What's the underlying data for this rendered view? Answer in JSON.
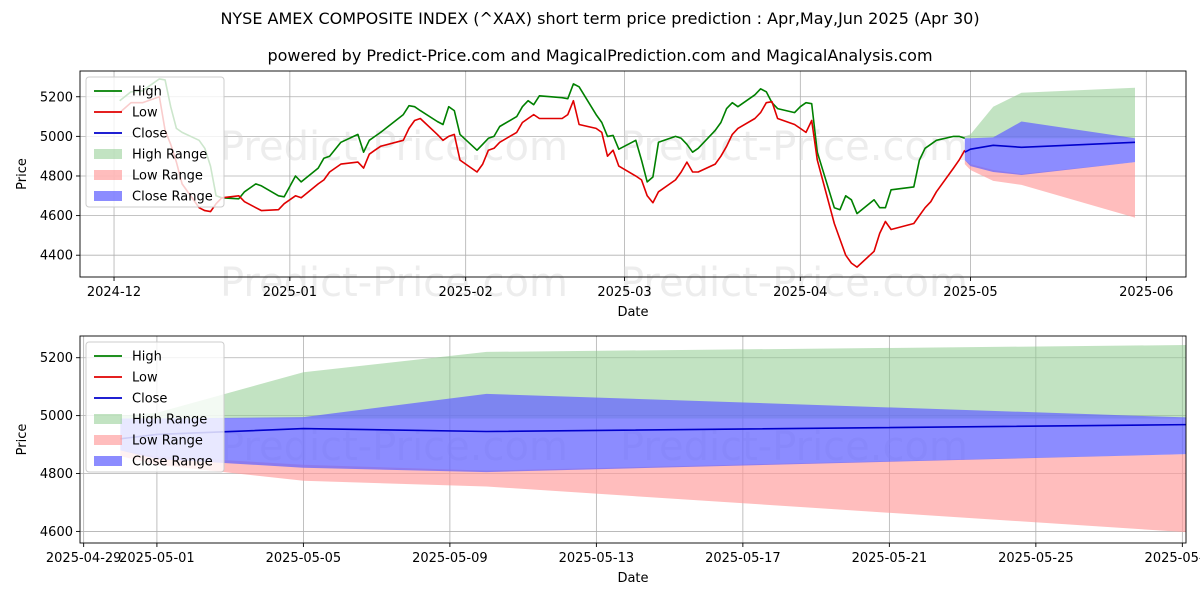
{
  "title": "NYSE AMEX COMPOSITE INDEX (^XAX) short term price prediction : Apr,May,Jun 2025 (Apr 30)",
  "subtitle": "powered by Predict-Price.com and MagicalPrediction.com and MagicalAnalysis.com",
  "watermarks": [
    "Predict-Price.com",
    "Predict-Price.com",
    "Predict-Price.com",
    "Predict-Price.com",
    "Predict-Price.com",
    "Predict-Price.com"
  ],
  "colors": {
    "high": "#008000",
    "low": "#e00000",
    "close": "#0000cc",
    "high_range": "#8fcc8f",
    "low_range": "#ff9999",
    "close_range": "#6666ff"
  },
  "chart_data": [
    {
      "type": "line",
      "xlabel": "Date",
      "ylabel": "Price",
      "x_tick_labels": [
        "2024-12",
        "2025-01",
        "2025-02",
        "2025-03",
        "2025-04",
        "2025-05",
        "2025-06"
      ],
      "x_ticks": [
        "2024-12-01",
        "2025-01-01",
        "2025-02-01",
        "2025-03-01",
        "2025-04-01",
        "2025-05-01",
        "2025-06-01"
      ],
      "y_ticks": [
        4400,
        4600,
        4800,
        5000,
        5200
      ],
      "xlim": [
        "2024-11-25",
        "2025-06-08"
      ],
      "ylim": [
        4290,
        5330
      ],
      "grid": true,
      "legend": "top-left",
      "legend_entries": [
        "High",
        "Low",
        "Close",
        "High Range",
        "Low Range",
        "Close Range"
      ],
      "series": [
        {
          "name": "High",
          "x": [
            "2024-12-02",
            "2024-12-04",
            "2024-12-06",
            "2024-12-09",
            "2024-12-10",
            "2024-12-11",
            "2024-12-12",
            "2024-12-13",
            "2024-12-16",
            "2024-12-17",
            "2024-12-18",
            "2024-12-19",
            "2024-12-20",
            "2024-12-23",
            "2024-12-24",
            "2024-12-26",
            "2024-12-27",
            "2024-12-30",
            "2024-12-31",
            "2025-01-02",
            "2025-01-03",
            "2025-01-06",
            "2025-01-07",
            "2025-01-08",
            "2025-01-10",
            "2025-01-13",
            "2025-01-14",
            "2025-01-15",
            "2025-01-16",
            "2025-01-17",
            "2025-01-21",
            "2025-01-22",
            "2025-01-23",
            "2025-01-24",
            "2025-01-27",
            "2025-01-28",
            "2025-01-29",
            "2025-01-30",
            "2025-01-31",
            "2025-02-03",
            "2025-02-04",
            "2025-02-05",
            "2025-02-06",
            "2025-02-07",
            "2025-02-10",
            "2025-02-11",
            "2025-02-12",
            "2025-02-13",
            "2025-02-14",
            "2025-02-18",
            "2025-02-19",
            "2025-02-20",
            "2025-02-21",
            "2025-02-24",
            "2025-02-25",
            "2025-02-26",
            "2025-02-27",
            "2025-02-28",
            "2025-03-03",
            "2025-03-04",
            "2025-03-05",
            "2025-03-06",
            "2025-03-07",
            "2025-03-10",
            "2025-03-11",
            "2025-03-12",
            "2025-03-13",
            "2025-03-14",
            "2025-03-17",
            "2025-03-18",
            "2025-03-19",
            "2025-03-20",
            "2025-03-21",
            "2025-03-24",
            "2025-03-25",
            "2025-03-26",
            "2025-03-27",
            "2025-03-28",
            "2025-03-31",
            "2025-04-01",
            "2025-04-02",
            "2025-04-03",
            "2025-04-04",
            "2025-04-07",
            "2025-04-08",
            "2025-04-09",
            "2025-04-10",
            "2025-04-11",
            "2025-04-14",
            "2025-04-15",
            "2025-04-16",
            "2025-04-17",
            "2025-04-21",
            "2025-04-22",
            "2025-04-23",
            "2025-04-24",
            "2025-04-25",
            "2025-04-28",
            "2025-04-29",
            "2025-04-30"
          ],
          "values": [
            5180,
            5225,
            5230,
            5290,
            5285,
            5150,
            5040,
            5020,
            4980,
            4940,
            4850,
            4700,
            4690,
            4685,
            4720,
            4760,
            4750,
            4700,
            4695,
            4800,
            4770,
            4840,
            4890,
            4900,
            4970,
            5010,
            4920,
            4980,
            5000,
            5020,
            5110,
            5155,
            5150,
            5130,
            5075,
            5060,
            5150,
            5130,
            5010,
            4930,
            4960,
            4990,
            5000,
            5050,
            5100,
            5150,
            5180,
            5160,
            5205,
            5195,
            5190,
            5265,
            5250,
            5110,
            5070,
            5000,
            5005,
            4935,
            4980,
            4880,
            4770,
            4795,
            4970,
            5000,
            4990,
            4960,
            4920,
            4940,
            5030,
            5070,
            5140,
            5170,
            5150,
            5210,
            5240,
            5225,
            5170,
            5140,
            5120,
            5150,
            5170,
            5165,
            4920,
            4640,
            4630,
            4700,
            4680,
            4610,
            4680,
            4640,
            4640,
            4730,
            4745,
            4880,
            4940,
            4960,
            4980,
            5000,
            5000,
            4990
          ]
        },
        {
          "name": "Low",
          "x": [
            "2024-12-02",
            "2024-12-04",
            "2024-12-06",
            "2024-12-09",
            "2024-12-10",
            "2024-12-11",
            "2024-12-12",
            "2024-12-13",
            "2024-12-16",
            "2024-12-17",
            "2024-12-18",
            "2024-12-19",
            "2024-12-20",
            "2024-12-23",
            "2024-12-24",
            "2024-12-26",
            "2024-12-27",
            "2024-12-30",
            "2024-12-31",
            "2025-01-02",
            "2025-01-03",
            "2025-01-06",
            "2025-01-07",
            "2025-01-08",
            "2025-01-10",
            "2025-01-13",
            "2025-01-14",
            "2025-01-15",
            "2025-01-16",
            "2025-01-17",
            "2025-01-21",
            "2025-01-22",
            "2025-01-23",
            "2025-01-24",
            "2025-01-27",
            "2025-01-28",
            "2025-01-29",
            "2025-01-30",
            "2025-01-31",
            "2025-02-03",
            "2025-02-04",
            "2025-02-05",
            "2025-02-06",
            "2025-02-07",
            "2025-02-10",
            "2025-02-11",
            "2025-02-12",
            "2025-02-13",
            "2025-02-14",
            "2025-02-18",
            "2025-02-19",
            "2025-02-20",
            "2025-02-21",
            "2025-02-24",
            "2025-02-25",
            "2025-02-26",
            "2025-02-27",
            "2025-02-28",
            "2025-03-03",
            "2025-03-04",
            "2025-03-05",
            "2025-03-06",
            "2025-03-07",
            "2025-03-10",
            "2025-03-11",
            "2025-03-12",
            "2025-03-13",
            "2025-03-14",
            "2025-03-17",
            "2025-03-18",
            "2025-03-19",
            "2025-03-20",
            "2025-03-21",
            "2025-03-24",
            "2025-03-25",
            "2025-03-26",
            "2025-03-27",
            "2025-03-28",
            "2025-03-31",
            "2025-04-01",
            "2025-04-02",
            "2025-04-03",
            "2025-04-04",
            "2025-04-07",
            "2025-04-08",
            "2025-04-09",
            "2025-04-10",
            "2025-04-11",
            "2025-04-14",
            "2025-04-15",
            "2025-04-16",
            "2025-04-17",
            "2025-04-21",
            "2025-04-22",
            "2025-04-23",
            "2025-04-24",
            "2025-04-25",
            "2025-04-28",
            "2025-04-29",
            "2025-04-30"
          ],
          "values": [
            5120,
            5170,
            5170,
            5200,
            5030,
            4960,
            4870,
            4760,
            4640,
            4625,
            4620,
            4660,
            4690,
            4700,
            4670,
            4640,
            4625,
            4630,
            4660,
            4700,
            4690,
            4760,
            4780,
            4820,
            4860,
            4870,
            4840,
            4910,
            4930,
            4950,
            4980,
            5040,
            5080,
            5090,
            5010,
            4980,
            5000,
            5010,
            4880,
            4820,
            4860,
            4930,
            4940,
            4970,
            5020,
            5070,
            5090,
            5110,
            5090,
            5090,
            5110,
            5180,
            5060,
            5040,
            5020,
            4900,
            4930,
            4850,
            4800,
            4780,
            4700,
            4665,
            4720,
            4780,
            4820,
            4870,
            4820,
            4820,
            4860,
            4900,
            4950,
            5010,
            5040,
            5090,
            5120,
            5170,
            5175,
            5090,
            5060,
            5040,
            5020,
            5080,
            4880,
            4560,
            4480,
            4400,
            4360,
            4340,
            4420,
            4510,
            4570,
            4530,
            4560,
            4600,
            4640,
            4670,
            4720,
            4840,
            4880,
            4930
          ]
        },
        {
          "name": "Close",
          "x": [
            "2025-04-30",
            "2025-05-01",
            "2025-05-05",
            "2025-05-10",
            "2025-05-30"
          ],
          "values": [
            4920,
            4935,
            4955,
            4945,
            4970
          ]
        },
        {
          "name": "High Range",
          "x": [
            "2025-04-30",
            "2025-05-01",
            "2025-05-05",
            "2025-05-10",
            "2025-05-30"
          ],
          "lower": [
            4990,
            4990,
            4990,
            4990,
            4990
          ],
          "upper": [
            5000,
            5010,
            5150,
            5220,
            5245
          ]
        },
        {
          "name": "Low Range",
          "x": [
            "2025-04-30",
            "2025-05-01",
            "2025-05-05",
            "2025-05-10",
            "2025-05-30"
          ],
          "lower": [
            4860,
            4830,
            4775,
            4755,
            4590
          ],
          "upper": [
            4880,
            4860,
            4830,
            4810,
            4870
          ]
        },
        {
          "name": "Close Range",
          "x": [
            "2025-04-30",
            "2025-05-01",
            "2025-05-05",
            "2025-05-10",
            "2025-05-30"
          ],
          "lower": [
            4880,
            4850,
            4820,
            4805,
            4870
          ],
          "upper": [
            4990,
            4990,
            4995,
            5075,
            4990
          ]
        }
      ]
    },
    {
      "type": "line",
      "xlabel": "Date",
      "ylabel": "Price",
      "x_tick_labels": [
        "2025-04-29",
        "2025-05-01",
        "2025-05-05",
        "2025-05-09",
        "2025-05-13",
        "2025-05-17",
        "2025-05-21",
        "2025-05-25",
        "2025-05-29"
      ],
      "x_ticks": [
        "2025-04-29",
        "2025-05-01",
        "2025-05-05",
        "2025-05-09",
        "2025-05-13",
        "2025-05-17",
        "2025-05-21",
        "2025-05-25",
        "2025-05-29"
      ],
      "y_ticks": [
        4600,
        4800,
        5000,
        5200
      ],
      "xlim": [
        "2025-04-28.9",
        "2025-05-29.1"
      ],
      "ylim": [
        4560,
        5275
      ],
      "grid": true,
      "legend": "top-left",
      "legend_entries": [
        "High",
        "Low",
        "Close",
        "High Range",
        "Low Range",
        "Close Range"
      ],
      "series": [
        {
          "name": "High",
          "x": [],
          "values": []
        },
        {
          "name": "Low",
          "x": [],
          "values": []
        },
        {
          "name": "Close",
          "x": [
            "2025-04-30",
            "2025-05-01",
            "2025-05-05",
            "2025-05-10",
            "2025-05-30"
          ],
          "values": [
            4920,
            4935,
            4955,
            4945,
            4970
          ]
        },
        {
          "name": "High Range",
          "x": [
            "2025-04-30",
            "2025-05-01",
            "2025-05-05",
            "2025-05-10",
            "2025-05-30"
          ],
          "lower": [
            4990,
            4990,
            4990,
            4990,
            4990
          ],
          "upper": [
            5000,
            5010,
            5150,
            5220,
            5245
          ]
        },
        {
          "name": "Low Range",
          "x": [
            "2025-04-30",
            "2025-05-01",
            "2025-05-05",
            "2025-05-10",
            "2025-05-30"
          ],
          "lower": [
            4860,
            4830,
            4775,
            4755,
            4590
          ],
          "upper": [
            4880,
            4860,
            4830,
            4810,
            4870
          ]
        },
        {
          "name": "Close Range",
          "x": [
            "2025-04-30",
            "2025-05-01",
            "2025-05-05",
            "2025-05-10",
            "2025-05-30"
          ],
          "lower": [
            4880,
            4850,
            4820,
            4805,
            4870
          ],
          "upper": [
            4990,
            4990,
            4995,
            5075,
            4990
          ]
        }
      ]
    }
  ]
}
